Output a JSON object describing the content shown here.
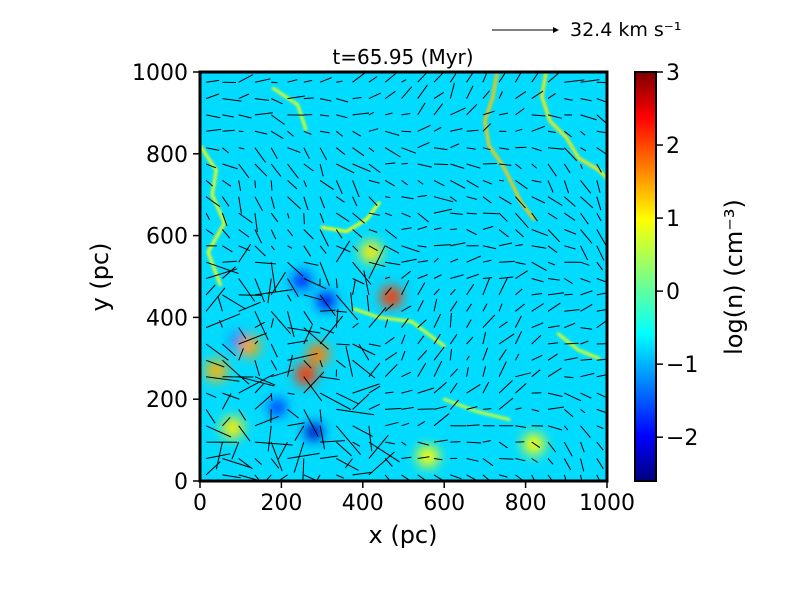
{
  "chart_data": {
    "type": "heatmap",
    "title": "t=65.95 (Myr)",
    "xlabel": "x (pc)",
    "ylabel": "y (pc)",
    "xlim": [
      0,
      1000
    ],
    "ylim": [
      0,
      1000
    ],
    "xticks": [
      0,
      200,
      400,
      600,
      800,
      1000
    ],
    "yticks": [
      0,
      200,
      400,
      600,
      800,
      1000
    ],
    "colorbar": {
      "label": "log(n) (cm⁻³)",
      "range": [
        -2.6,
        3.0
      ],
      "ticks": [
        -2,
        -1,
        0,
        1,
        2,
        3
      ],
      "tick_labels": [
        "−2",
        "−1",
        "0",
        "1",
        "2",
        "3"
      ],
      "colormap": "jet"
    },
    "background_value": -0.7,
    "velocity_reference": {
      "label": "32.4 km s⁻¹",
      "value": 32.4
    },
    "dense_features": [
      {
        "x": 470,
        "y": 450,
        "log_n": 2.0
      },
      {
        "x": 260,
        "y": 260,
        "log_n": 2.0
      },
      {
        "x": 290,
        "y": 310,
        "log_n": 1.6
      },
      {
        "x": 120,
        "y": 330,
        "log_n": 1.4
      },
      {
        "x": 40,
        "y": 270,
        "log_n": 1.3
      },
      {
        "x": 420,
        "y": 560,
        "log_n": 1.0
      },
      {
        "x": 80,
        "y": 130,
        "log_n": 1.0
      },
      {
        "x": 560,
        "y": 60,
        "log_n": 0.9
      },
      {
        "x": 820,
        "y": 90,
        "log_n": 0.9
      }
    ],
    "low_density_features": [
      {
        "x": 280,
        "y": 120,
        "log_n": -2.2
      },
      {
        "x": 310,
        "y": 440,
        "log_n": -2.0
      },
      {
        "x": 250,
        "y": 490,
        "log_n": -1.8
      },
      {
        "x": 100,
        "y": 340,
        "log_n": -1.8
      },
      {
        "x": 190,
        "y": 180,
        "log_n": -1.6
      }
    ],
    "filaments": [
      {
        "points": [
          [
            730,
            1000
          ],
          [
            720,
            940
          ],
          [
            700,
            880
          ],
          [
            710,
            820
          ],
          [
            745,
            770
          ],
          [
            770,
            720
          ],
          [
            790,
            680
          ],
          [
            820,
            640
          ]
        ],
        "log_n": 1.2
      },
      {
        "points": [
          [
            850,
            1000
          ],
          [
            840,
            940
          ],
          [
            860,
            880
          ],
          [
            900,
            840
          ],
          [
            930,
            790
          ],
          [
            980,
            760
          ],
          [
            1000,
            740
          ]
        ],
        "log_n": 1.0
      },
      {
        "points": [
          [
            300,
            620
          ],
          [
            360,
            610
          ],
          [
            410,
            640
          ],
          [
            440,
            680
          ]
        ],
        "log_n": 0.9
      },
      {
        "points": [
          [
            0,
            820
          ],
          [
            40,
            760
          ],
          [
            30,
            700
          ],
          [
            60,
            630
          ],
          [
            20,
            560
          ],
          [
            50,
            480
          ]
        ],
        "log_n": 0.8
      },
      {
        "points": [
          [
            380,
            420
          ],
          [
            440,
            400
          ],
          [
            520,
            390
          ],
          [
            560,
            360
          ],
          [
            600,
            330
          ]
        ],
        "log_n": 0.7
      },
      {
        "points": [
          [
            600,
            200
          ],
          [
            680,
            170
          ],
          [
            760,
            150
          ]
        ],
        "log_n": 0.6
      },
      {
        "points": [
          [
            180,
            960
          ],
          [
            240,
            920
          ],
          [
            260,
            860
          ]
        ],
        "log_n": 0.7
      },
      {
        "points": [
          [
            880,
            360
          ],
          [
            930,
            320
          ],
          [
            980,
            300
          ]
        ],
        "log_n": 0.7
      }
    ]
  }
}
